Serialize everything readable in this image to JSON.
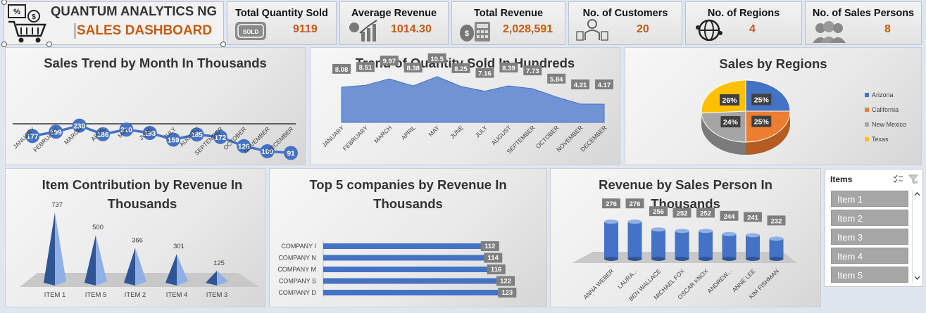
{
  "header": {
    "company": "QUANTUM ANALYTICS NG",
    "dashboard_title": "SALES DASHBOARD"
  },
  "kpis": [
    {
      "label": "Total Quantity Sold",
      "value": "9119",
      "icon": "sold-out-stamp-icon"
    },
    {
      "label": "Average Revenue",
      "value": "1014.30",
      "icon": "growth-chart-icon"
    },
    {
      "label": "Total Revenue",
      "value": "2,028,591",
      "icon": "money-calculator-icon"
    },
    {
      "label": "No. of Customers",
      "value": "20",
      "icon": "customer-icon"
    },
    {
      "label": "No. of Regions",
      "value": "4",
      "icon": "globe-icon"
    },
    {
      "label": "No. of Sales Persons",
      "value": "8",
      "icon": "sales-team-icon"
    }
  ],
  "colors": {
    "accent": "#c55a11",
    "series": "#4472c4",
    "label_bg": "#7f7f7f"
  },
  "chart_data": [
    {
      "type": "line",
      "title": "Sales Trend by Month In Thousands",
      "categories": [
        "JANUARY",
        "FEBRUARY",
        "MARCH",
        "APRIL",
        "MAY",
        "JUNE",
        "JULY",
        "AUGUST",
        "SEPTEMBER",
        "OCTOBER",
        "NOVEMBER",
        "DECEMBER"
      ],
      "values": [
        177,
        199,
        230,
        186,
        210,
        193,
        159,
        185,
        172,
        126,
        100,
        91
      ]
    },
    {
      "type": "area",
      "title": "Trend of Quantity Sold In Hundreds",
      "categories": [
        "JANUARY",
        "FEBRUARY",
        "MARCH",
        "APRIL",
        "MAY",
        "JUNE",
        "JULY",
        "AUGUST",
        "SEPTEMBER",
        "OCTOBER",
        "NOVEMBER",
        "DECEMBER"
      ],
      "values": [
        8.08,
        8.51,
        9.97,
        8.38,
        10.5,
        8.25,
        7.16,
        8.39,
        7.73,
        5.84,
        4.21,
        4.17
      ]
    },
    {
      "type": "pie",
      "title": "Sales by Regions",
      "categories": [
        "Arizona",
        "California",
        "New Mexico",
        "Texas"
      ],
      "values": [
        25,
        25,
        24,
        26
      ],
      "labels": [
        "25%",
        "25%",
        "24%",
        "26%"
      ],
      "colors": [
        "#4472c4",
        "#ed7d31",
        "#a5a5a5",
        "#ffc000"
      ],
      "legend": "right"
    },
    {
      "type": "bar",
      "title": "Item Contribution by Revenue In Thousands",
      "categories": [
        "ITEM 1",
        "ITEM 5",
        "ITEM 2",
        "ITEM 4",
        "ITEM 3"
      ],
      "values": [
        737,
        500,
        366,
        301,
        125
      ]
    },
    {
      "type": "bar",
      "title": "Top 5 companies by Revenue In Thousands",
      "orientation": "horizontal",
      "categories": [
        "COMPANY I",
        "COMPANY N",
        "COMPANY M",
        "COMPANY S",
        "COMPANY D"
      ],
      "values": [
        112,
        114,
        116,
        122,
        123
      ]
    },
    {
      "type": "bar",
      "title": "Revenue by Sales Person In Thousands",
      "categories": [
        "ANNA WEBER",
        "LAURA...",
        "BEN WALLACE",
        "MICHAEL FOX",
        "OSCAR KNOX",
        "ANDREW...",
        "ANNE LEE",
        "KIM FISHMAN"
      ],
      "values": [
        276,
        276,
        256,
        252,
        252,
        244,
        241,
        232
      ]
    }
  ],
  "slicer": {
    "title": "Items",
    "items": [
      "Item 1",
      "Item 2",
      "Item 3",
      "Item 4",
      "Item 5"
    ]
  }
}
